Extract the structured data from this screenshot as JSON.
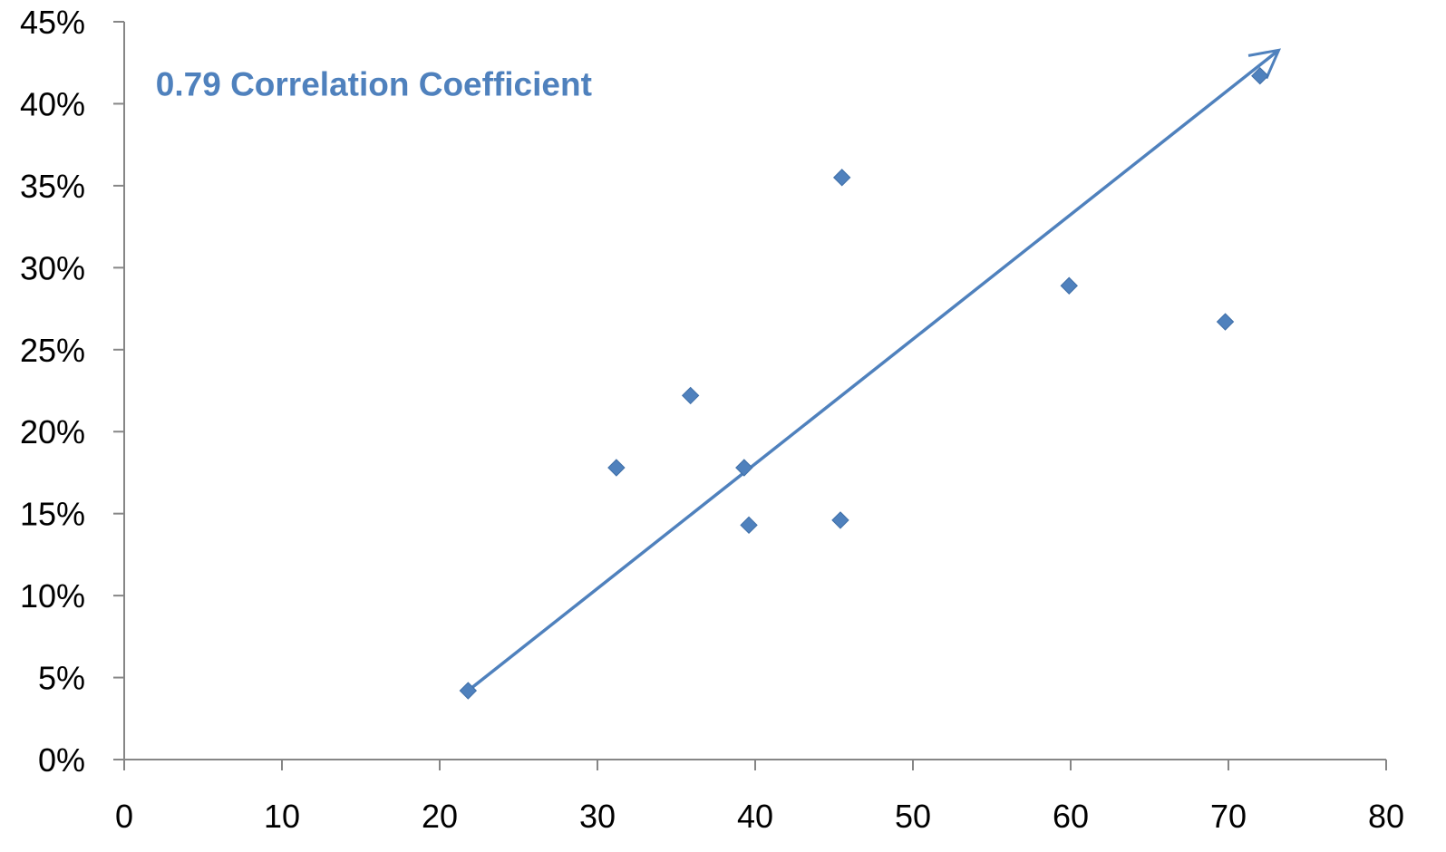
{
  "chart_data": {
    "type": "scatter",
    "title": "",
    "xlabel": "",
    "ylabel": "",
    "xlim": [
      0,
      80
    ],
    "ylim": [
      0,
      0.45
    ],
    "x_ticks": [
      0,
      10,
      20,
      30,
      40,
      50,
      60,
      70,
      80
    ],
    "x_tick_labels": [
      "0",
      "10",
      "20",
      "30",
      "40",
      "50",
      "60",
      "70",
      "80"
    ],
    "y_ticks": [
      0,
      0.05,
      0.1,
      0.15,
      0.2,
      0.25,
      0.3,
      0.35,
      0.4,
      0.45
    ],
    "y_tick_labels": [
      "0%",
      "5%",
      "10%",
      "15%",
      "20%",
      "25%",
      "30%",
      "35%",
      "40%",
      "45%"
    ],
    "grid": false,
    "legend": "none",
    "color": "#4F81BD",
    "marker": "diamond",
    "series": [
      {
        "points": [
          {
            "x": 21.8,
            "y": 0.042
          },
          {
            "x": 31.2,
            "y": 0.178
          },
          {
            "x": 35.9,
            "y": 0.222
          },
          {
            "x": 39.3,
            "y": 0.178
          },
          {
            "x": 39.6,
            "y": 0.143
          },
          {
            "x": 45.4,
            "y": 0.146
          },
          {
            "x": 45.5,
            "y": 0.355
          },
          {
            "x": 59.9,
            "y": 0.289
          },
          {
            "x": 69.8,
            "y": 0.267
          },
          {
            "x": 72.0,
            "y": 0.417
          }
        ]
      }
    ],
    "trend_arrow": {
      "from": {
        "x": 21.8,
        "y": 0.042
      },
      "to": {
        "x": 73.1,
        "y": 0.432
      }
    },
    "annotations": [
      {
        "text": "0.79 Correlation Coefficient",
        "x": 2.0,
        "y": 0.405
      }
    ]
  }
}
